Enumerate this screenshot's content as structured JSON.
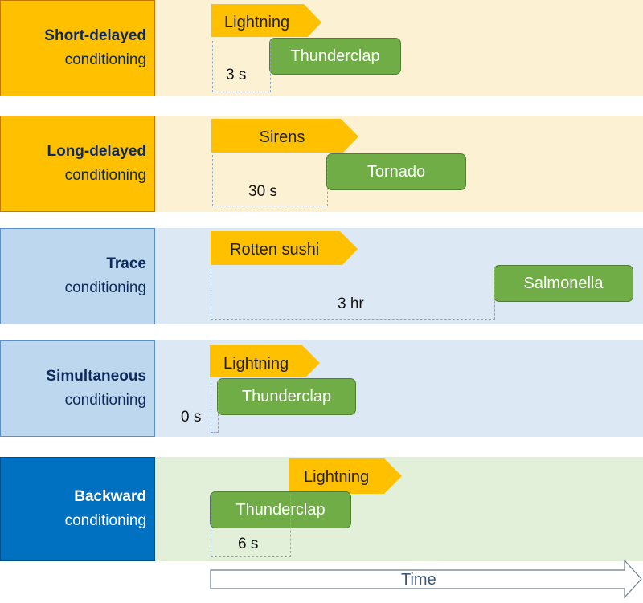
{
  "rows": [
    {
      "title_bold": "Short-delayed",
      "title_rest": "conditioning",
      "cs_label": "Lightning",
      "us_label": "Thunderclap",
      "delay": "3 s",
      "colors": {
        "label_bg": "#ffc000",
        "label_border": "#c07a00",
        "label_text": "#0e2a5c",
        "panel_bg": "#fdf1d3"
      }
    },
    {
      "title_bold": "Long-delayed",
      "title_rest": "conditioning",
      "cs_label": "Sirens",
      "us_label": "Tornado",
      "delay": "30 s",
      "colors": {
        "label_bg": "#ffc000",
        "label_border": "#c07a00",
        "label_text": "#0e2a5c",
        "panel_bg": "#fdf1d3"
      }
    },
    {
      "title_bold": "Trace",
      "title_rest": "conditioning",
      "cs_label": "Rotten sushi",
      "us_label": "Salmonella",
      "delay": "3 hr",
      "colors": {
        "label_bg": "#bdd7ee",
        "label_border": "#5b8fc7",
        "label_text": "#0e2a5c",
        "panel_bg": "#dde8f5"
      }
    },
    {
      "title_bold": "Simultaneous",
      "title_rest": "conditioning",
      "cs_label": "Lightning",
      "us_label": "Thunderclap",
      "delay": "0 s",
      "colors": {
        "label_bg": "#bdd7ee",
        "label_border": "#5b8fc7",
        "label_text": "#0e2a5c",
        "panel_bg": "#dde8f5"
      }
    },
    {
      "title_bold": "Backward",
      "title_rest": "conditioning",
      "cs_label": "Lightning",
      "us_label": "Thunderclap",
      "delay": "6 s",
      "colors": {
        "label_bg": "#0070c0",
        "label_border": "#00508a",
        "label_text": "#ffffff",
        "panel_bg": "#e2efd9"
      }
    }
  ],
  "time_label": "Time",
  "icons": {
    "time": "arrow-right-icon"
  },
  "colors": {
    "cs_fill": "#ffc000",
    "us_fill": "#70ad47",
    "us_border": "#507e32",
    "dash": "#8ea6c4"
  }
}
